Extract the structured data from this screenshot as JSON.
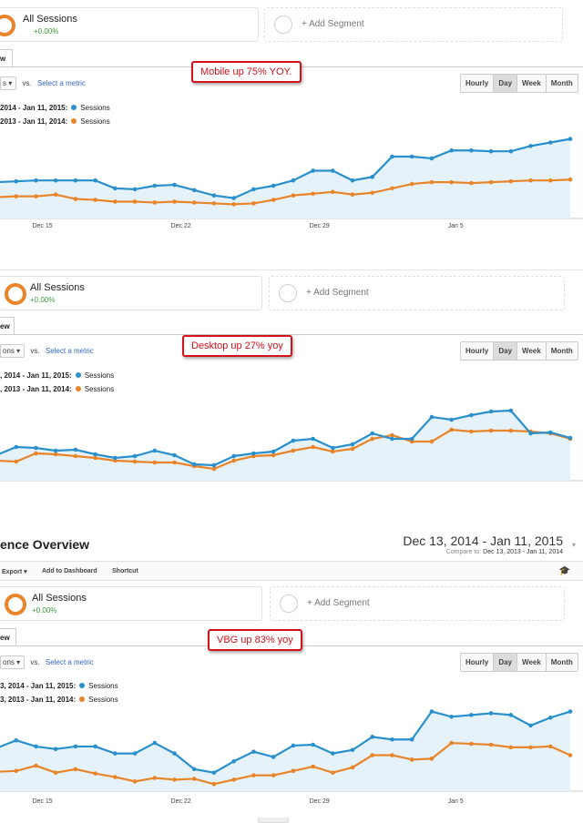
{
  "common": {
    "segment_name": "All Sessions",
    "segment_pct": "+0.00%",
    "add_segment": "+ Add Segment",
    "tab_label": "w",
    "tab_label_alt": "ew",
    "metric_select": "s",
    "metric_select_alt": "ons",
    "vs": "vs.",
    "select_metric": "Select a metric",
    "range_buttons": [
      "Hourly",
      "Day",
      "Week",
      "Month"
    ],
    "active_range": "Day",
    "colors": {
      "current": "#2990cc",
      "previous": "#e8852a",
      "area": "#e6f2fa",
      "callout": "#d4121a"
    }
  },
  "header": {
    "title": "ence Overview",
    "date_range": "Dec 13, 2014 - Jan 11, 2015",
    "compare_label": "Compare to:",
    "compare_range": "Dec 13, 2013 - Jan 11, 2014",
    "toolbar": {
      "export": "Export ▾",
      "add_dashboard": "Add to Dashboard",
      "shortcut": "Shortcut"
    },
    "cap_icon": "graduation-cap-icon"
  },
  "panels": [
    {
      "callout": "Mobile up 75% YOY.",
      "legend_current": "2014 - Jan 11, 2015:",
      "legend_previous": "2013 - Jan 11, 2014:",
      "series_label": "Sessions",
      "x_ticks": [
        "Dec 15",
        "Dec 22",
        "Dec 29",
        "Jan 5"
      ]
    },
    {
      "callout": "Desktop up 27% yoy",
      "legend_current": ", 2014 - Jan 11, 2015:",
      "legend_previous": ", 2013 - Jan 11, 2014:",
      "series_label": "Sessions",
      "x_ticks": []
    },
    {
      "callout": "VBG up 83% yoy",
      "legend_current": "3, 2014 - Jan 11, 2015:",
      "legend_previous": "3, 2013 - Jan 11, 2014:",
      "series_label": "Sessions",
      "x_ticks": [
        "Dec 15",
        "Dec 22",
        "Dec 29",
        "Jan 5"
      ]
    }
  ],
  "chart_data": [
    {
      "type": "line",
      "x": [
        "Dec 13",
        "Dec 14",
        "Dec 15",
        "Dec 16",
        "Dec 17",
        "Dec 18",
        "Dec 19",
        "Dec 20",
        "Dec 21",
        "Dec 22",
        "Dec 23",
        "Dec 24",
        "Dec 25",
        "Dec 26",
        "Dec 27",
        "Dec 28",
        "Dec 29",
        "Dec 30",
        "Dec 31",
        "Jan 1",
        "Jan 2",
        "Jan 3",
        "Jan 4",
        "Jan 5",
        "Jan 6",
        "Jan 7",
        "Jan 8",
        "Jan 9",
        "Jan 10",
        "Jan 11"
      ],
      "series": [
        {
          "name": "Sessions",
          "period": "current",
          "values": [
            38,
            39,
            40,
            40,
            40,
            40,
            31,
            30,
            34,
            35,
            29,
            23,
            20,
            30,
            34,
            40,
            51,
            51,
            40,
            44,
            67,
            67,
            65,
            74,
            74,
            73,
            73,
            79,
            83,
            87
          ]
        },
        {
          "name": "Sessions",
          "period": "previous",
          "values": [
            21,
            22,
            22,
            24,
            19,
            18,
            16,
            16,
            15,
            16,
            15,
            14,
            13,
            14,
            18,
            23,
            25,
            27,
            24,
            26,
            31,
            36,
            38,
            38,
            37,
            38,
            39,
            40,
            40,
            41
          ]
        }
      ],
      "ylim": [
        0,
        100
      ]
    },
    {
      "type": "line",
      "x": [
        "Dec 13",
        "Dec 14",
        "Dec 15",
        "Dec 16",
        "Dec 17",
        "Dec 18",
        "Dec 19",
        "Dec 20",
        "Dec 21",
        "Dec 22",
        "Dec 23",
        "Dec 24",
        "Dec 25",
        "Dec 26",
        "Dec 27",
        "Dec 28",
        "Dec 29",
        "Dec 30",
        "Dec 31",
        "Jan 1",
        "Jan 2",
        "Jan 3",
        "Jan 4",
        "Jan 5",
        "Jan 6",
        "Jan 7",
        "Jan 8",
        "Jan 9",
        "Jan 10",
        "Jan 11"
      ],
      "series": [
        {
          "name": "Sessions",
          "period": "current",
          "values": [
            28,
            37,
            36,
            33,
            34,
            29,
            25,
            27,
            33,
            28,
            18,
            17,
            27,
            30,
            32,
            44,
            46,
            36,
            40,
            52,
            46,
            46,
            70,
            67,
            72,
            76,
            77,
            52,
            53,
            47
          ]
        },
        {
          "name": "Sessions",
          "period": "previous",
          "values": [
            22,
            21,
            30,
            29,
            27,
            25,
            22,
            21,
            20,
            20,
            16,
            13,
            22,
            27,
            28,
            33,
            37,
            32,
            35,
            46,
            50,
            43,
            43,
            56,
            54,
            55,
            55,
            54,
            52,
            46
          ]
        }
      ],
      "ylim": [
        0,
        100
      ]
    },
    {
      "type": "line",
      "x": [
        "Dec 13",
        "Dec 14",
        "Dec 15",
        "Dec 16",
        "Dec 17",
        "Dec 18",
        "Dec 19",
        "Dec 20",
        "Dec 21",
        "Dec 22",
        "Dec 23",
        "Dec 24",
        "Dec 25",
        "Dec 26",
        "Dec 27",
        "Dec 28",
        "Dec 29",
        "Dec 30",
        "Dec 31",
        "Jan 1",
        "Jan 2",
        "Jan 3",
        "Jan 4",
        "Jan 5",
        "Jan 6",
        "Jan 7",
        "Jan 8",
        "Jan 9",
        "Jan 10",
        "Jan 11"
      ],
      "series": [
        {
          "name": "Sessions",
          "period": "current",
          "values": [
            46,
            55,
            48,
            45,
            48,
            48,
            40,
            40,
            52,
            40,
            22,
            18,
            31,
            42,
            36,
            49,
            50,
            40,
            44,
            59,
            56,
            56,
            88,
            82,
            84,
            86,
            84,
            72,
            81,
            88
          ]
        },
        {
          "name": "Sessions",
          "period": "previous",
          "values": [
            19,
            20,
            26,
            18,
            22,
            17,
            13,
            8,
            12,
            10,
            11,
            5,
            10,
            15,
            15,
            20,
            25,
            18,
            24,
            38,
            38,
            33,
            34,
            52,
            51,
            50,
            47,
            47,
            48,
            38
          ]
        }
      ],
      "ylim": [
        0,
        100
      ]
    }
  ]
}
